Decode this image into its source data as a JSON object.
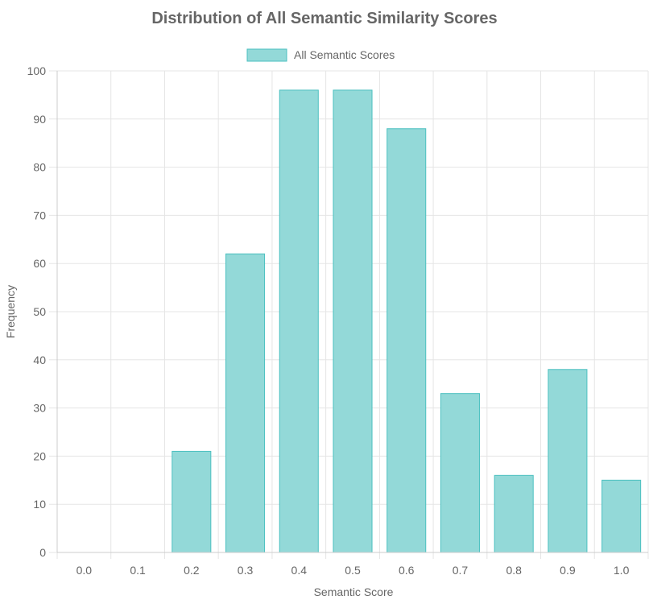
{
  "chart_data": {
    "type": "bar",
    "title": "Distribution of All Semantic Similarity Scores",
    "xlabel": "Semantic Score",
    "ylabel": "Frequency",
    "categories": [
      "0.0",
      "0.1",
      "0.2",
      "0.3",
      "0.4",
      "0.5",
      "0.6",
      "0.7",
      "0.8",
      "0.9",
      "1.0"
    ],
    "series": [
      {
        "name": "All Semantic Scores",
        "values": [
          0,
          0,
          21,
          62,
          96,
          96,
          88,
          33,
          16,
          38,
          15
        ]
      }
    ],
    "ylim": [
      0,
      100
    ],
    "yticks": [
      "0",
      "10",
      "20",
      "30",
      "40",
      "50",
      "60",
      "70",
      "80",
      "90",
      "100"
    ],
    "grid": true,
    "legend_position": "top",
    "colors": {
      "bar_fill": "#93d9d8",
      "bar_border": "#4bc0c0",
      "grid": "#e5e5e5",
      "text": "#666666"
    }
  }
}
